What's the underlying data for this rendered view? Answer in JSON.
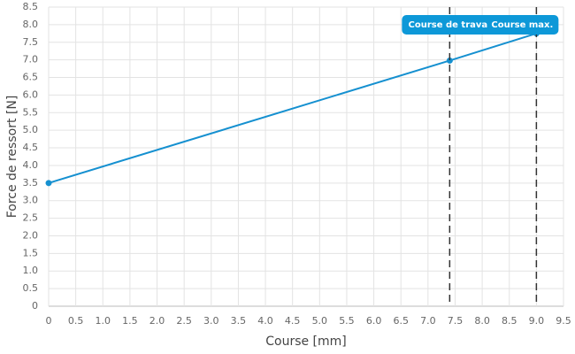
{
  "chart_data": {
    "type": "line",
    "x_label": "Course [mm]",
    "y_label": "Force de ressort [N]",
    "x": [
      0,
      7.4,
      9
    ],
    "values": [
      3.5,
      6.98,
      7.75
    ],
    "color": "#1590d0",
    "xlim": [
      0,
      9.5
    ],
    "ylim": [
      0,
      8.5
    ],
    "xticks": [
      0,
      0.5,
      {
        "value": 1,
        "label": "1.0"
      },
      1.5,
      {
        "value": 2,
        "label": "2.0"
      },
      2.5,
      {
        "value": 3,
        "label": "3.0"
      },
      3.5,
      {
        "value": 4,
        "label": "4.0"
      },
      4.5,
      {
        "value": 5,
        "label": "5.0"
      },
      5.5,
      {
        "value": 6,
        "label": "6.0"
      },
      6.5,
      {
        "value": 7,
        "label": "7.0"
      },
      7.5,
      {
        "value": 8,
        "label": "8.0"
      },
      8.5,
      {
        "value": 9,
        "label": "9.0"
      },
      9.5
    ],
    "yticks": [
      0,
      0.5,
      {
        "value": 1,
        "label": "1.0"
      },
      1.5,
      {
        "value": 2,
        "label": "2.0"
      },
      2.5,
      {
        "value": 3,
        "label": "3.0"
      },
      3.5,
      {
        "value": 4,
        "label": "4.0"
      },
      4.5,
      {
        "value": 5,
        "label": "5.0"
      },
      5.5,
      {
        "value": 6,
        "label": "6.0"
      },
      6.5,
      {
        "value": 7,
        "label": "7.0"
      },
      7.5,
      {
        "value": 8,
        "label": "8.0"
      },
      8.5
    ],
    "grid": true,
    "annotations": [
      {
        "x": 7.4,
        "label": "Course de trava"
      },
      {
        "x": 9,
        "label": "Course max."
      }
    ]
  }
}
